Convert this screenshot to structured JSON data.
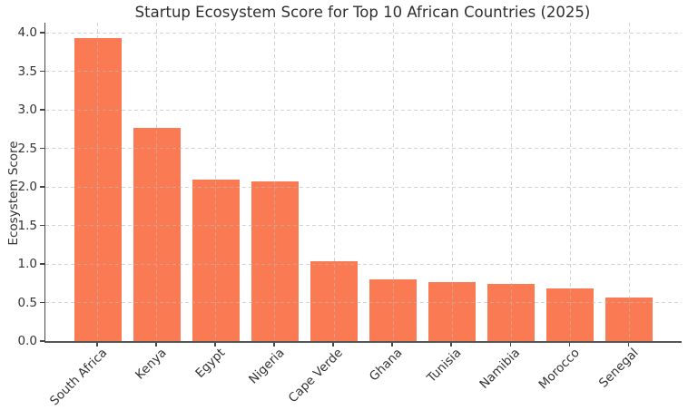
{
  "chart_data": {
    "type": "bar",
    "title": "Startup Ecosystem Score for Top 10 African Countries (2025)",
    "ylabel": "Ecosystem Score",
    "xlabel": "",
    "categories": [
      "South Africa",
      "Kenya",
      "Egypt",
      "Nigeria",
      "Cape Verde",
      "Ghana",
      "Tunisia",
      "Namibia",
      "Morocco",
      "Senegal"
    ],
    "values": [
      3.93,
      2.76,
      2.09,
      2.07,
      1.04,
      0.8,
      0.77,
      0.74,
      0.68,
      0.57
    ],
    "ylim": [
      0,
      4.13
    ],
    "yticks": [
      "0.0",
      "0.5",
      "1.0",
      "1.5",
      "2.0",
      "2.5",
      "3.0",
      "3.5",
      "4.0"
    ],
    "x_tick_rotation_deg": 45,
    "legend": "none",
    "grid": {
      "axes": "both",
      "style": "dashed",
      "color": "#cccccc",
      "drawn_over_bars": true
    },
    "colors": {
      "bar": "#FA7B53",
      "background": "#ffffff",
      "text": "#333333",
      "spine": "#4a4a4a"
    }
  }
}
